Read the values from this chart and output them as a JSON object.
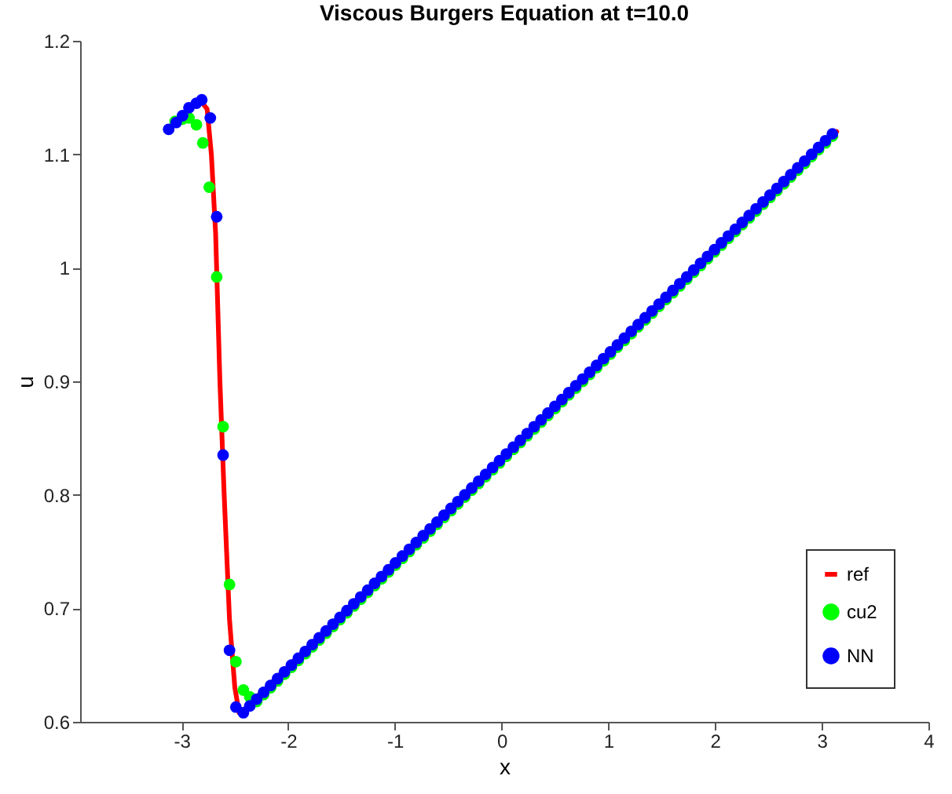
{
  "chart_data": {
    "type": "scatter",
    "title": "Viscous Burgers Equation at t=10.0",
    "xlabel": "x",
    "ylabel": "u",
    "xlim": [
      -3.95,
      4
    ],
    "xticks": [
      -3,
      -2,
      -1,
      0,
      1,
      2,
      3,
      4
    ],
    "ylim": [
      0.6,
      1.2
    ],
    "yticks": [
      0.6,
      0.7,
      0.8,
      0.9,
      1,
      1.1,
      1.2
    ],
    "grid": false,
    "legend": "bottom right",
    "series": [
      {
        "name": "ref",
        "type": "line",
        "marker": "none",
        "color": "#ff0000",
        "x": [
          -2.82,
          -2.76,
          -2.72,
          -2.68,
          -2.64,
          -2.6,
          -2.55,
          -2.5,
          -2.46,
          -2.4,
          3.14
        ],
        "values": [
          1.147,
          1.14,
          1.1,
          1.03,
          0.9,
          0.8,
          0.69,
          0.63,
          0.608,
          0.612,
          1.12
        ]
      },
      {
        "name": "cu2",
        "marker": "circle",
        "color": "#00ff00",
        "x": [
          -3.06,
          -2.99,
          -2.93,
          -2.86,
          -2.8,
          -2.74,
          -2.67,
          -2.61,
          -2.55,
          -2.49,
          -2.42,
          -2.36,
          -2.295,
          -2.23,
          -2.165,
          -2.1,
          -2.035,
          -1.97,
          -1.905,
          -1.84,
          -1.775,
          -1.71,
          -1.645,
          -1.58,
          -1.515,
          -1.45,
          -1.385,
          -1.32,
          -1.255,
          -1.19,
          -1.125,
          -1.06,
          -0.995,
          -0.93,
          -0.865,
          -0.8,
          -0.735,
          -0.67,
          -0.605,
          -0.54,
          -0.475,
          -0.41,
          -0.345,
          -0.28,
          -0.215,
          -0.15,
          -0.085,
          -0.02,
          0.045,
          0.11,
          0.175,
          0.24,
          0.305,
          0.37,
          0.435,
          0.5,
          0.565,
          0.63,
          0.695,
          0.76,
          0.825,
          0.89,
          0.955,
          1.02,
          1.085,
          1.15,
          1.215,
          1.28,
          1.345,
          1.41,
          1.475,
          1.54,
          1.605,
          1.67,
          1.735,
          1.8,
          1.865,
          1.93,
          1.995,
          2.06,
          2.125,
          2.19,
          2.255,
          2.32,
          2.385,
          2.45,
          2.515,
          2.58,
          2.645,
          2.71,
          2.775,
          2.84,
          2.905,
          2.97,
          3.035,
          3.1
        ],
        "values": [
          1.129,
          1.131,
          1.132,
          1.126,
          1.11,
          1.071,
          0.992,
          0.86,
          0.721,
          0.653,
          0.628,
          0.622,
          0.618,
          0.624,
          0.63,
          0.636,
          0.642,
          0.648,
          0.654,
          0.66,
          0.666,
          0.672,
          0.678,
          0.684,
          0.69,
          0.696,
          0.702,
          0.708,
          0.714,
          0.72,
          0.726,
          0.732,
          0.738,
          0.744,
          0.75,
          0.756,
          0.762,
          0.768,
          0.774,
          0.78,
          0.786,
          0.792,
          0.798,
          0.804,
          0.81,
          0.816,
          0.822,
          0.828,
          0.834,
          0.84,
          0.846,
          0.852,
          0.858,
          0.864,
          0.87,
          0.876,
          0.882,
          0.888,
          0.894,
          0.9,
          0.906,
          0.912,
          0.918,
          0.924,
          0.93,
          0.936,
          0.942,
          0.948,
          0.954,
          0.96,
          0.966,
          0.972,
          0.978,
          0.984,
          0.99,
          0.996,
          1.002,
          1.008,
          1.014,
          1.02,
          1.026,
          1.032,
          1.038,
          1.044,
          1.05,
          1.056,
          1.062,
          1.068,
          1.074,
          1.08,
          1.086,
          1.092,
          1.098,
          1.104,
          1.11,
          1.116
        ]
      },
      {
        "name": "NN",
        "marker": "circle",
        "color": "#0000ff",
        "x": [
          -3.12,
          -3.05,
          -2.99,
          -2.93,
          -2.86,
          -2.81,
          -2.73,
          -2.67,
          -2.61,
          -2.55,
          -2.49,
          -2.42,
          -2.36,
          -2.295,
          -2.23,
          -2.165,
          -2.1,
          -2.035,
          -1.97,
          -1.905,
          -1.84,
          -1.775,
          -1.71,
          -1.645,
          -1.58,
          -1.515,
          -1.45,
          -1.385,
          -1.32,
          -1.255,
          -1.19,
          -1.125,
          -1.06,
          -0.995,
          -0.93,
          -0.865,
          -0.8,
          -0.735,
          -0.67,
          -0.605,
          -0.54,
          -0.475,
          -0.41,
          -0.345,
          -0.28,
          -0.215,
          -0.15,
          -0.085,
          -0.02,
          0.045,
          0.11,
          0.175,
          0.24,
          0.305,
          0.37,
          0.435,
          0.5,
          0.565,
          0.63,
          0.695,
          0.76,
          0.825,
          0.89,
          0.955,
          1.02,
          1.085,
          1.15,
          1.215,
          1.28,
          1.345,
          1.41,
          1.475,
          1.54,
          1.605,
          1.67,
          1.735,
          1.8,
          1.865,
          1.93,
          1.995,
          2.06,
          2.125,
          2.19,
          2.255,
          2.32,
          2.385,
          2.45,
          2.515,
          2.58,
          2.645,
          2.71,
          2.775,
          2.84,
          2.905,
          2.97,
          3.035,
          3.1
        ],
        "values": [
          1.122,
          1.128,
          1.134,
          1.141,
          1.145,
          1.148,
          1.132,
          1.045,
          0.835,
          0.663,
          0.613,
          0.608,
          0.614,
          0.62,
          0.626,
          0.632,
          0.638,
          0.644,
          0.65,
          0.656,
          0.662,
          0.668,
          0.674,
          0.68,
          0.686,
          0.692,
          0.698,
          0.704,
          0.71,
          0.716,
          0.722,
          0.728,
          0.734,
          0.74,
          0.746,
          0.752,
          0.758,
          0.764,
          0.77,
          0.776,
          0.782,
          0.788,
          0.794,
          0.8,
          0.806,
          0.812,
          0.818,
          0.824,
          0.83,
          0.836,
          0.842,
          0.848,
          0.854,
          0.86,
          0.866,
          0.872,
          0.878,
          0.884,
          0.89,
          0.896,
          0.902,
          0.908,
          0.914,
          0.92,
          0.926,
          0.932,
          0.938,
          0.944,
          0.95,
          0.956,
          0.962,
          0.968,
          0.974,
          0.98,
          0.986,
          0.992,
          0.998,
          1.004,
          1.01,
          1.016,
          1.022,
          1.028,
          1.034,
          1.04,
          1.046,
          1.052,
          1.058,
          1.064,
          1.07,
          1.076,
          1.082,
          1.088,
          1.094,
          1.1,
          1.106,
          1.112,
          1.118
        ]
      }
    ]
  }
}
